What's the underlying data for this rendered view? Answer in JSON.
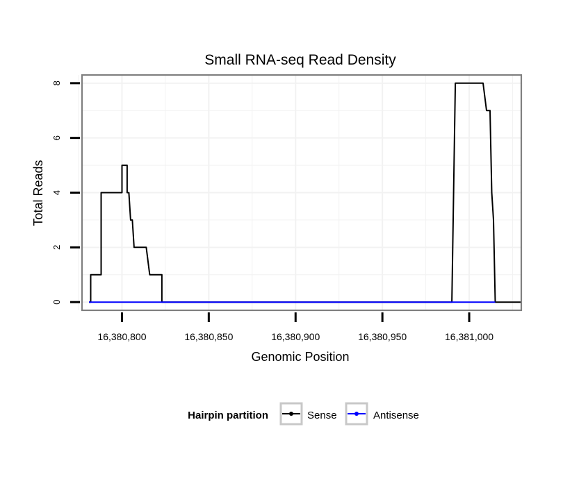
{
  "chart_data": {
    "type": "line",
    "title": "Small RNA-seq Read Density",
    "xlabel": "Genomic Position",
    "ylabel": "Total Reads",
    "xlim": [
      16380777,
      16381030
    ],
    "ylim": [
      -0.3,
      8.3
    ],
    "x_ticks": [
      16380800,
      16380850,
      16380900,
      16380950,
      16381000
    ],
    "x_tick_labels": [
      "16,380,800",
      "16,380,850",
      "16,380,900",
      "16,380,950",
      "16,381,000"
    ],
    "y_ticks": [
      0,
      2,
      4,
      6,
      8
    ],
    "y_tick_labels": [
      "0",
      "2",
      "4",
      "6",
      "8"
    ],
    "grid": true,
    "legend": {
      "title": "Hairpin partition",
      "position": "bottom",
      "entries": [
        {
          "name": "Sense",
          "color": "#000000"
        },
        {
          "name": "Antisense",
          "color": "#0000ff"
        }
      ]
    },
    "series": [
      {
        "name": "Sense",
        "color": "#000000",
        "x": [
          16380781,
          16380782,
          16380782,
          16380788,
          16380788,
          16380794,
          16380796,
          16380796,
          16380798,
          16380800,
          16380800,
          16380802,
          16380803,
          16380803,
          16380804,
          16380805,
          16380806,
          16380807,
          16380808,
          16380809,
          16380814,
          16380816,
          16380817,
          16380821,
          16380823,
          16380823,
          16380990,
          16380992,
          16380998,
          16381003,
          16381008,
          16381010,
          16381012,
          16381013,
          16381014,
          16381015,
          16381030
        ],
        "y": [
          0,
          0,
          1,
          1,
          4,
          4,
          4,
          4,
          4,
          4,
          5,
          5,
          5,
          4,
          4,
          3,
          3,
          2,
          2,
          2,
          2,
          1,
          1,
          1,
          1,
          0,
          0,
          8,
          8,
          8,
          8,
          7,
          7,
          4,
          3,
          0,
          0
        ]
      },
      {
        "name": "Antisense",
        "color": "#0000ff",
        "x": [
          16380781,
          16380823,
          16380990,
          16381015
        ],
        "y": [
          0,
          0,
          0,
          0
        ]
      }
    ]
  }
}
